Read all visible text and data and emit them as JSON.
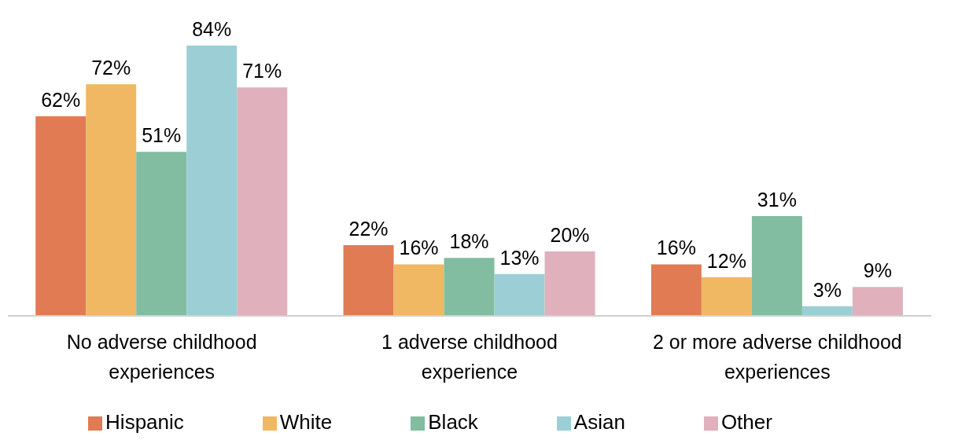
{
  "chart_data": {
    "type": "bar",
    "categories": [
      "No adverse childhood experiences",
      "1 adverse childhood experience",
      "2 or more adverse childhood experiences"
    ],
    "series": [
      {
        "name": "Hispanic",
        "color": "#e07b54",
        "values": [
          62,
          22,
          16
        ],
        "value_labels": [
          "62%",
          "22%",
          "16%"
        ]
      },
      {
        "name": "White",
        "color": "#f0b862",
        "values": [
          72,
          16,
          12
        ],
        "value_labels": [
          "72%",
          "16%",
          "12%"
        ]
      },
      {
        "name": "Black",
        "color": "#82bca1",
        "values": [
          51,
          18,
          31
        ],
        "value_labels": [
          "51%",
          "18%",
          "31%"
        ]
      },
      {
        "name": "Asian",
        "color": "#9bcfd5",
        "values": [
          84,
          13,
          3
        ],
        "value_labels": [
          "84%",
          "13%",
          "3%"
        ]
      },
      {
        "name": "Other",
        "color": "#e0b0bc",
        "values": [
          71,
          20,
          9
        ],
        "value_labels": [
          "71%",
          "20%",
          "9%"
        ]
      }
    ],
    "legend": "bottom",
    "grid": false
  }
}
